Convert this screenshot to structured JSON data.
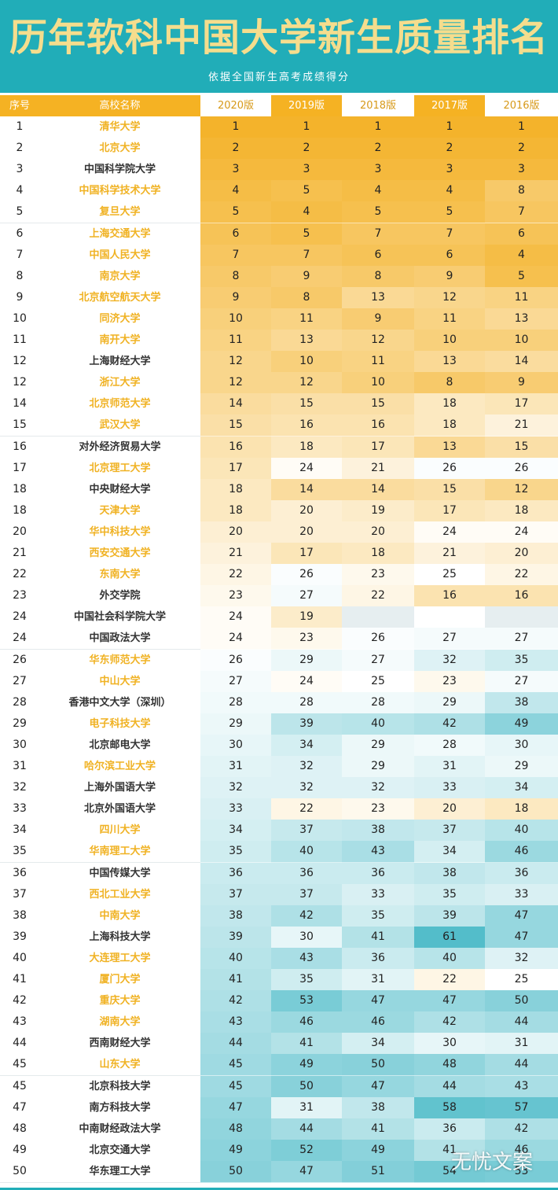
{
  "title": "历年软科中国大学新生质量排名",
  "subtitle": "依据全国新生高考成绩得分",
  "watermark": "无忧文案",
  "colors": {
    "header_bg": "#21adb8",
    "title_color": "#f5dd8d",
    "orange": "#f5b223",
    "light_orange": "#fbd37c",
    "highlight_name": "#f0b223",
    "teal": "#4fbcc9"
  },
  "chart_data": {
    "type": "table",
    "columns": [
      "序号",
      "高校名称",
      "2020版",
      "2019版",
      "2018版",
      "2017版",
      "2016版"
    ],
    "rows": [
      {
        "rank": "1",
        "name": "清华大学",
        "hl": true,
        "v": [
          1,
          1,
          1,
          1,
          1
        ]
      },
      {
        "rank": "2",
        "name": "北京大学",
        "hl": true,
        "v": [
          2,
          2,
          2,
          2,
          2
        ]
      },
      {
        "rank": "3",
        "name": "中国科学院大学",
        "hl": false,
        "v": [
          3,
          3,
          3,
          3,
          3
        ]
      },
      {
        "rank": "4",
        "name": "中国科学技术大学",
        "hl": true,
        "v": [
          4,
          5,
          4,
          4,
          8
        ]
      },
      {
        "rank": "5",
        "name": "复旦大学",
        "hl": true,
        "v": [
          5,
          4,
          5,
          5,
          7
        ]
      },
      {
        "rank": "6",
        "name": "上海交通大学",
        "hl": true,
        "v": [
          6,
          5,
          7,
          7,
          6
        ]
      },
      {
        "rank": "7",
        "name": "中国人民大学",
        "hl": true,
        "v": [
          7,
          7,
          6,
          6,
          4
        ]
      },
      {
        "rank": "8",
        "name": "南京大学",
        "hl": true,
        "v": [
          8,
          9,
          8,
          9,
          5
        ]
      },
      {
        "rank": "9",
        "name": "北京航空航天大学",
        "hl": true,
        "v": [
          9,
          8,
          13,
          12,
          11
        ]
      },
      {
        "rank": "10",
        "name": "同济大学",
        "hl": true,
        "v": [
          10,
          11,
          9,
          11,
          13
        ]
      },
      {
        "rank": "11",
        "name": "南开大学",
        "hl": true,
        "v": [
          11,
          13,
          12,
          10,
          10
        ]
      },
      {
        "rank": "12",
        "name": "上海财经大学",
        "hl": false,
        "v": [
          12,
          10,
          11,
          13,
          14
        ]
      },
      {
        "rank": "12",
        "name": "浙江大学",
        "hl": true,
        "v": [
          12,
          12,
          10,
          8,
          9
        ]
      },
      {
        "rank": "14",
        "name": "北京师范大学",
        "hl": true,
        "v": [
          14,
          15,
          15,
          18,
          17
        ]
      },
      {
        "rank": "15",
        "name": "武汉大学",
        "hl": true,
        "v": [
          15,
          16,
          16,
          18,
          21
        ]
      },
      {
        "rank": "16",
        "name": "对外经济贸易大学",
        "hl": false,
        "v": [
          16,
          18,
          17,
          13,
          15
        ]
      },
      {
        "rank": "17",
        "name": "北京理工大学",
        "hl": true,
        "v": [
          17,
          24,
          21,
          26,
          26
        ]
      },
      {
        "rank": "18",
        "name": "中央财经大学",
        "hl": false,
        "v": [
          18,
          14,
          14,
          15,
          12
        ]
      },
      {
        "rank": "18",
        "name": "天津大学",
        "hl": true,
        "v": [
          18,
          20,
          19,
          17,
          18
        ]
      },
      {
        "rank": "20",
        "name": "华中科技大学",
        "hl": true,
        "v": [
          20,
          20,
          20,
          24,
          24
        ]
      },
      {
        "rank": "21",
        "name": "西安交通大学",
        "hl": true,
        "v": [
          21,
          17,
          18,
          21,
          20
        ]
      },
      {
        "rank": "22",
        "name": "东南大学",
        "hl": true,
        "v": [
          22,
          26,
          23,
          25,
          22
        ]
      },
      {
        "rank": "23",
        "name": "外交学院",
        "hl": false,
        "v": [
          23,
          27,
          22,
          16,
          16
        ]
      },
      {
        "rank": "24",
        "name": "中国社会科学院大学",
        "hl": false,
        "v": [
          24,
          19,
          null,
          null,
          null
        ]
      },
      {
        "rank": "24",
        "name": "中国政法大学",
        "hl": false,
        "v": [
          24,
          23,
          26,
          27,
          27
        ]
      },
      {
        "rank": "26",
        "name": "华东师范大学",
        "hl": true,
        "v": [
          26,
          29,
          27,
          32,
          35
        ]
      },
      {
        "rank": "27",
        "name": "中山大学",
        "hl": true,
        "v": [
          27,
          24,
          25,
          23,
          27
        ]
      },
      {
        "rank": "28",
        "name": "香港中文大学（深圳）",
        "hl": false,
        "v": [
          28,
          28,
          28,
          29,
          38
        ]
      },
      {
        "rank": "29",
        "name": "电子科技大学",
        "hl": true,
        "v": [
          29,
          39,
          40,
          42,
          49
        ]
      },
      {
        "rank": "30",
        "name": "北京邮电大学",
        "hl": false,
        "v": [
          30,
          34,
          29,
          28,
          30
        ]
      },
      {
        "rank": "31",
        "name": "哈尔滨工业大学",
        "hl": true,
        "v": [
          31,
          32,
          29,
          31,
          29
        ]
      },
      {
        "rank": "32",
        "name": "上海外国语大学",
        "hl": false,
        "v": [
          32,
          32,
          32,
          33,
          34
        ]
      },
      {
        "rank": "33",
        "name": "北京外国语大学",
        "hl": false,
        "v": [
          33,
          22,
          23,
          20,
          18
        ]
      },
      {
        "rank": "34",
        "name": "四川大学",
        "hl": true,
        "v": [
          34,
          37,
          38,
          37,
          40
        ]
      },
      {
        "rank": "35",
        "name": "华南理工大学",
        "hl": true,
        "v": [
          35,
          40,
          43,
          34,
          46
        ]
      },
      {
        "rank": "36",
        "name": "中国传媒大学",
        "hl": false,
        "v": [
          36,
          36,
          36,
          38,
          36
        ]
      },
      {
        "rank": "37",
        "name": "西北工业大学",
        "hl": true,
        "v": [
          37,
          37,
          33,
          35,
          33
        ]
      },
      {
        "rank": "38",
        "name": "中南大学",
        "hl": true,
        "v": [
          38,
          42,
          35,
          39,
          47
        ]
      },
      {
        "rank": "39",
        "name": "上海科技大学",
        "hl": false,
        "v": [
          39,
          30,
          41,
          61,
          47
        ]
      },
      {
        "rank": "40",
        "name": "大连理工大学",
        "hl": true,
        "v": [
          40,
          43,
          36,
          40,
          32
        ]
      },
      {
        "rank": "41",
        "name": "厦门大学",
        "hl": true,
        "v": [
          41,
          35,
          31,
          22,
          25
        ]
      },
      {
        "rank": "42",
        "name": "重庆大学",
        "hl": true,
        "v": [
          42,
          53,
          47,
          47,
          50
        ]
      },
      {
        "rank": "43",
        "name": "湖南大学",
        "hl": true,
        "v": [
          43,
          46,
          46,
          42,
          44
        ]
      },
      {
        "rank": "44",
        "name": "西南财经大学",
        "hl": false,
        "v": [
          44,
          41,
          34,
          30,
          31
        ]
      },
      {
        "rank": "45",
        "name": "山东大学",
        "hl": true,
        "v": [
          45,
          49,
          50,
          48,
          44
        ]
      },
      {
        "rank": "45",
        "name": "北京科技大学",
        "hl": false,
        "v": [
          45,
          50,
          47,
          44,
          43
        ]
      },
      {
        "rank": "47",
        "name": "南方科技大学",
        "hl": false,
        "v": [
          47,
          31,
          38,
          58,
          57
        ]
      },
      {
        "rank": "48",
        "name": "中南财经政法大学",
        "hl": false,
        "v": [
          48,
          44,
          41,
          36,
          42
        ]
      },
      {
        "rank": "49",
        "name": "北京交通大学",
        "hl": false,
        "v": [
          49,
          52,
          49,
          41,
          46
        ]
      },
      {
        "rank": "50",
        "name": "华东理工大学",
        "hl": false,
        "v": [
          50,
          47,
          51,
          54,
          53
        ]
      }
    ]
  }
}
